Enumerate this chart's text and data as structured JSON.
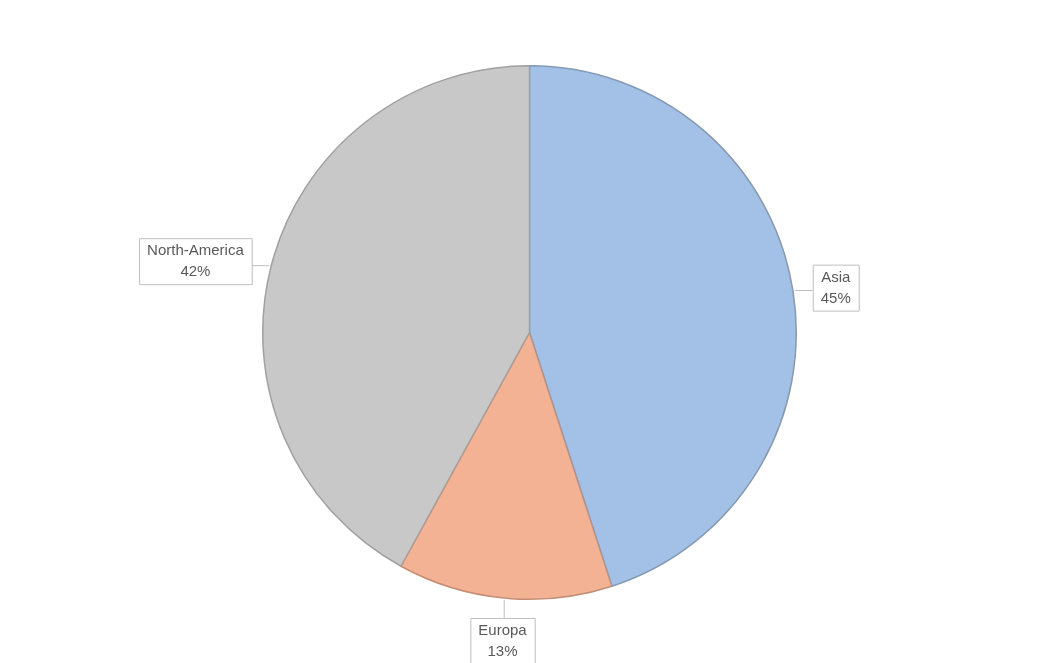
{
  "chart_data": {
    "type": "pie",
    "categories": [
      "Asia",
      "Europa",
      "North-America"
    ],
    "values": [
      45,
      13,
      42
    ],
    "value_labels": [
      "45%",
      "13%",
      "42%"
    ],
    "colors": [
      "#a3c0e6",
      "#f4b294",
      "#c8c8c8"
    ],
    "legend": false
  }
}
